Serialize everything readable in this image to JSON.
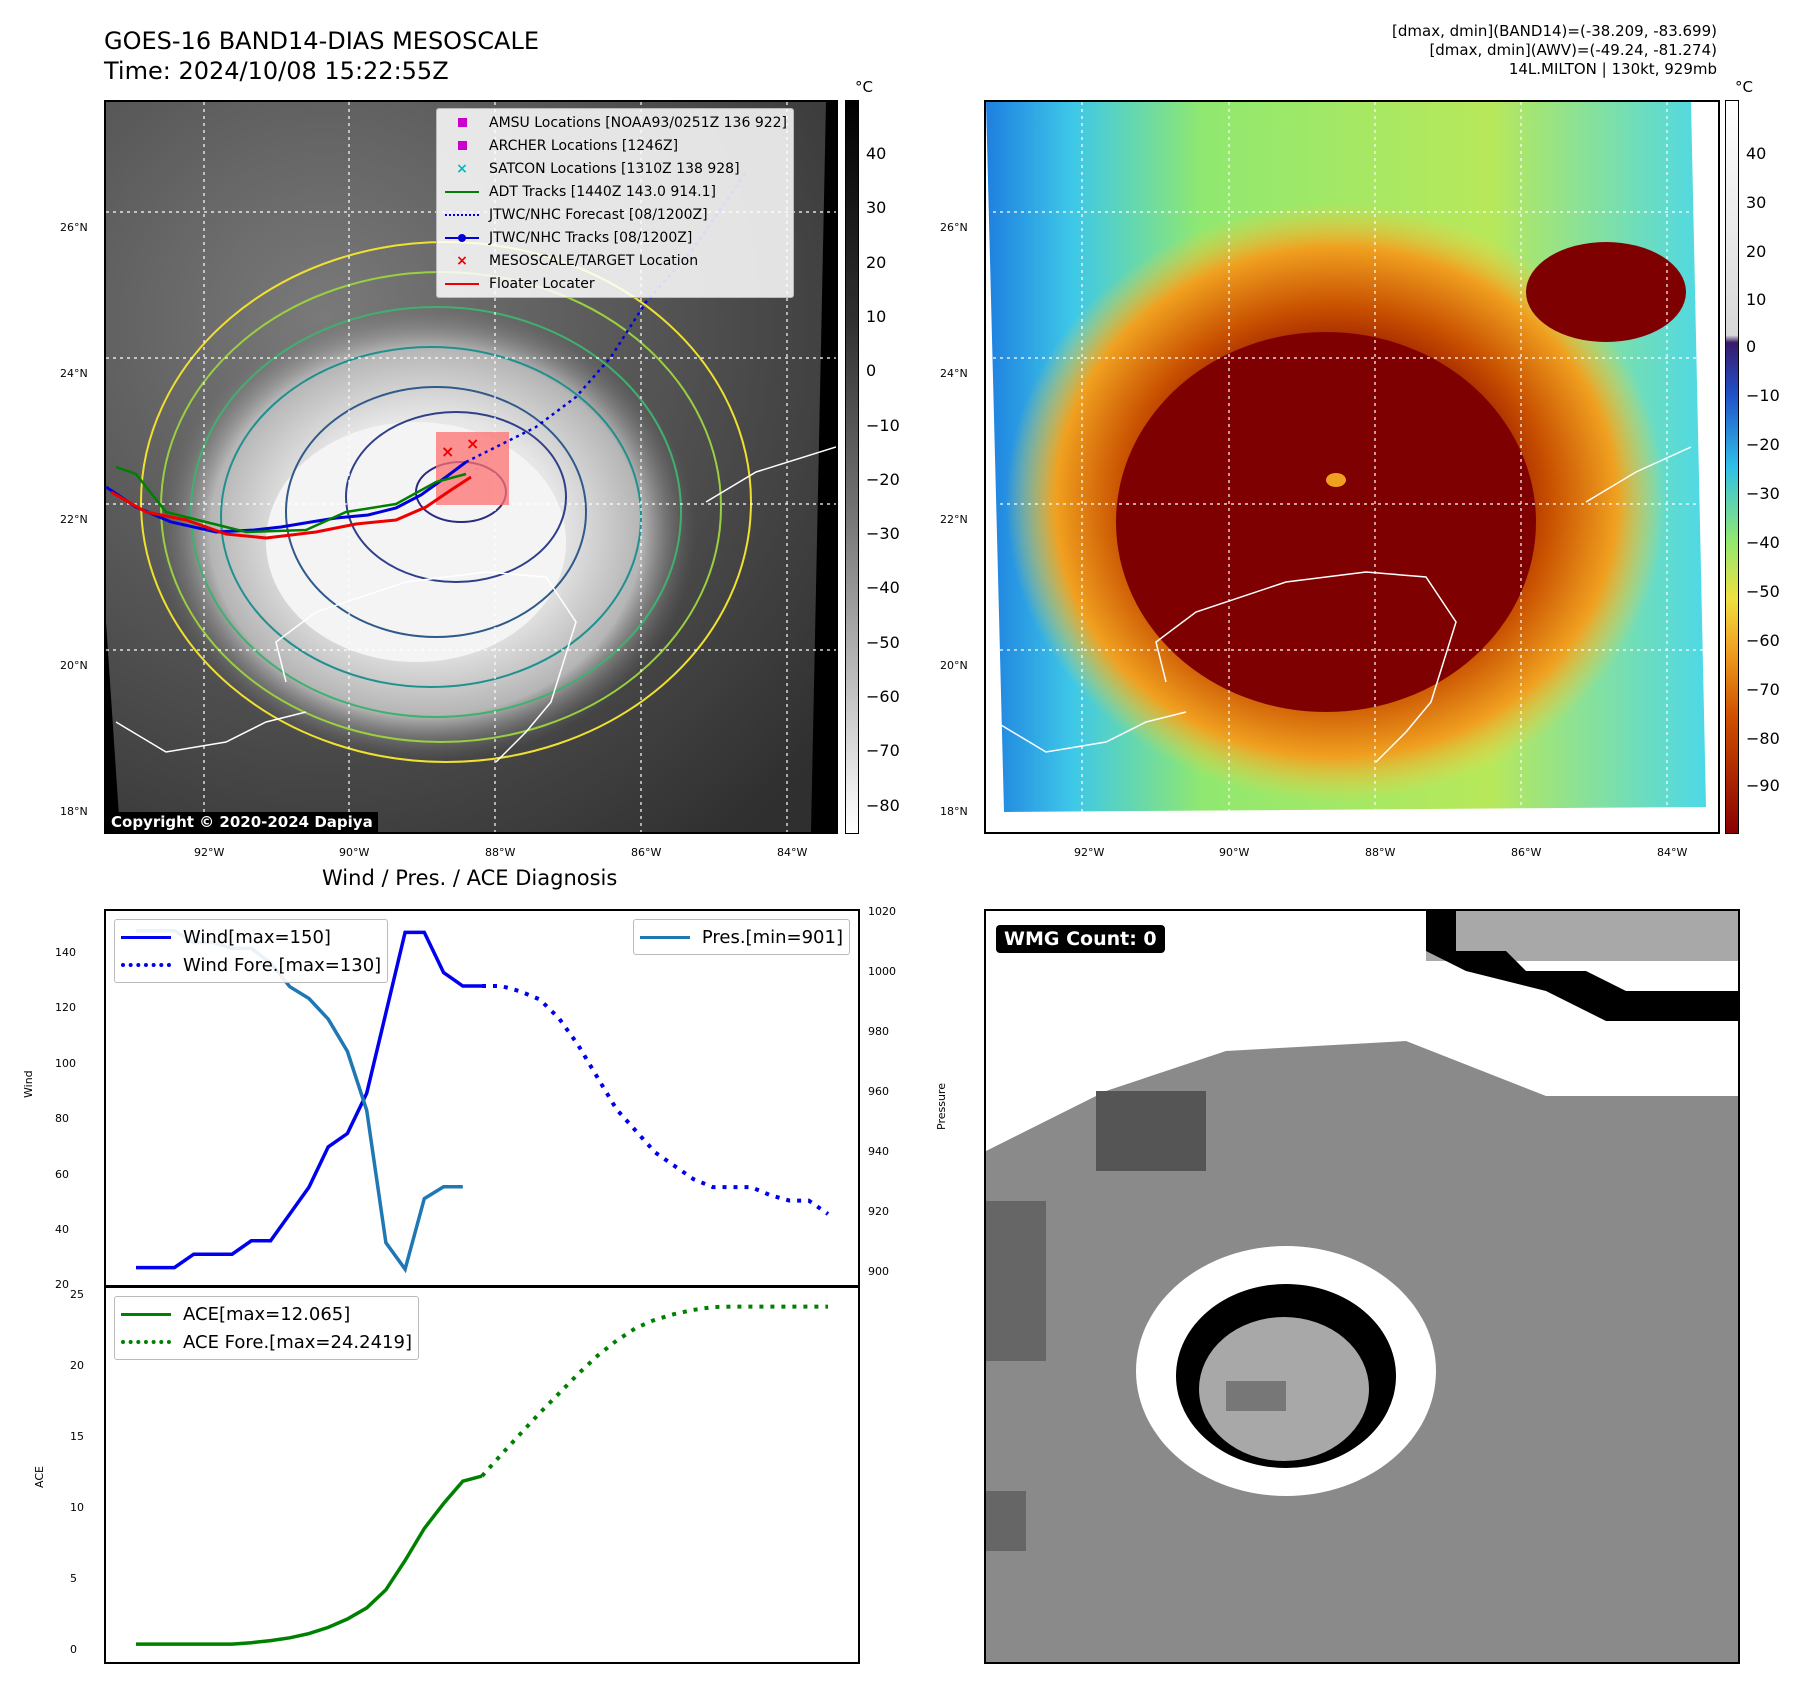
{
  "header": {
    "title_line1": "GOES-16 BAND14-DIAS MESOSCALE",
    "title_line2": "Time: 2024/10/08 15:22:55Z",
    "info_line1": "[dmax, dmin](BAND14)=(-38.209, -83.699)",
    "info_line2": "[dmax, dmin](AWV)=(-49.24, -81.274)",
    "info_line3": "14L.MILTON | 130kt, 929mb"
  },
  "map_axes": {
    "lat_labels": [
      "26°N",
      "24°N",
      "22°N",
      "20°N",
      "18°N"
    ],
    "lon_labels": [
      "92°W",
      "90°W",
      "88°W",
      "86°W",
      "84°W"
    ]
  },
  "ir_panel": {
    "colorbar_unit": "°C",
    "colorbar_ticks": [
      "40",
      "30",
      "20",
      "10",
      "0",
      "−10",
      "−20",
      "−30",
      "−40",
      "−50",
      "−60",
      "−70",
      "−80"
    ],
    "copyright": "Copyright © 2020-2024 Dapiya",
    "legend": [
      {
        "label": "AMSU Locations [NOAA93/0251Z 136 922]",
        "symbol": "square",
        "color": "#cc00cc"
      },
      {
        "label": "ARCHER Locations [1246Z]",
        "symbol": "square",
        "color": "#cc00cc"
      },
      {
        "label": "SATCON Locations [1310Z 138 928]",
        "symbol": "x",
        "color": "#00bbbb"
      },
      {
        "label": "ADT Tracks [1440Z 143.0 914.1]",
        "symbol": "line",
        "color": "#008000"
      },
      {
        "label": "JTWC/NHC Forecast [08/1200Z]",
        "symbol": "dotted",
        "color": "#0000dd"
      },
      {
        "label": "JTWC/NHC Tracks [08/1200Z]",
        "symbol": "line-dot",
        "color": "#0000dd"
      },
      {
        "label": "MESOSCALE/TARGET Location",
        "symbol": "x",
        "color": "#ee0000"
      },
      {
        "label": "Floater Locater",
        "symbol": "line",
        "color": "#ee0000"
      }
    ]
  },
  "awv_panel": {
    "colorbar_unit": "°C",
    "colorbar_ticks": [
      "40",
      "30",
      "20",
      "10",
      "0",
      "−10",
      "−20",
      "−30",
      "−40",
      "−50",
      "−60",
      "−70",
      "−80",
      "−90"
    ]
  },
  "diag": {
    "title": "Wind / Pres. / ACE Diagnosis",
    "wind_ylabel": "Wind",
    "pres_ylabel": "Pressure",
    "ace_ylabel": "ACE",
    "wind_ticks": [
      "140",
      "120",
      "100",
      "80",
      "60",
      "40",
      "20"
    ],
    "pres_ticks": [
      "1020",
      "1000",
      "980",
      "960",
      "940",
      "920",
      "900"
    ],
    "ace_ticks": [
      "25",
      "20",
      "15",
      "10",
      "5",
      "0"
    ],
    "legend_wind": "Wind[max=150]",
    "legend_wind_fore": "Wind Fore.[max=130]",
    "legend_pres": "Pres.[min=901]",
    "legend_ace": "ACE[max=12.065]",
    "legend_ace_fore": "ACE Fore.[max=24.2419]"
  },
  "wmg": {
    "badge": "WMG Count: 0"
  },
  "chart_data": [
    {
      "type": "line",
      "title": "Wind / Pres. / ACE Diagnosis",
      "ylabel": "Wind",
      "ylim": [
        20,
        155
      ],
      "series": [
        {
          "name": "Wind[max=150]",
          "x": [
            0,
            1,
            2,
            3,
            4,
            5,
            6,
            7,
            8,
            9,
            10,
            11,
            12,
            13,
            14,
            15,
            16,
            17,
            18
          ],
          "values": [
            25,
            25,
            25,
            30,
            30,
            30,
            35,
            35,
            45,
            55,
            70,
            75,
            90,
            120,
            150,
            150,
            135,
            130,
            130
          ],
          "color": "#0000ee"
        },
        {
          "name": "Wind Fore.[max=130]",
          "x": [
            18,
            19,
            20,
            21,
            22,
            23,
            24,
            25,
            26,
            27,
            28,
            29,
            30,
            31,
            32,
            33,
            34,
            35,
            36
          ],
          "values": [
            130,
            130,
            128,
            125,
            118,
            108,
            96,
            84,
            76,
            68,
            63,
            58,
            55,
            55,
            55,
            52,
            50,
            50,
            45
          ],
          "color": "#0000ee",
          "dash": "dotted"
        }
      ]
    },
    {
      "type": "line",
      "ylabel": "Pressure",
      "ylim": [
        897,
        1020
      ],
      "series": [
        {
          "name": "Pres.[min=901]",
          "x": [
            0,
            1,
            2,
            3,
            4,
            5,
            6,
            7,
            8,
            9,
            10,
            11,
            12,
            13,
            14,
            15,
            16,
            17
          ],
          "values": [
            1016,
            1016,
            1016,
            1012,
            1012,
            1010,
            1010,
            1005,
            997,
            993,
            986,
            975,
            955,
            910,
            901,
            925,
            929,
            929
          ],
          "color": "#1f77b4"
        }
      ]
    },
    {
      "type": "line",
      "ylabel": "ACE",
      "ylim": [
        -1,
        25
      ],
      "series": [
        {
          "name": "ACE[max=12.065]",
          "x": [
            0,
            1,
            2,
            3,
            4,
            5,
            6,
            7,
            8,
            9,
            10,
            11,
            12,
            13,
            14,
            15,
            16,
            17,
            18
          ],
          "values": [
            0,
            0,
            0,
            0,
            0,
            0,
            0.1,
            0.25,
            0.45,
            0.75,
            1.2,
            1.8,
            2.6,
            3.9,
            6,
            8.3,
            10.1,
            11.7,
            12.065
          ],
          "color": "#008000"
        },
        {
          "name": "ACE Fore.[max=24.2419]",
          "x": [
            18,
            19,
            20,
            21,
            22,
            23,
            24,
            25,
            26,
            27,
            28,
            29,
            30,
            31,
            32,
            33,
            34,
            35,
            36
          ],
          "values": [
            12.065,
            13.6,
            15.1,
            16.6,
            18,
            19.4,
            20.7,
            21.8,
            22.7,
            23.3,
            23.7,
            24.0,
            24.2,
            24.2419,
            24.2419,
            24.2419,
            24.2419,
            24.2419,
            24.2419
          ],
          "color": "#008000",
          "dash": "dotted"
        }
      ]
    }
  ]
}
